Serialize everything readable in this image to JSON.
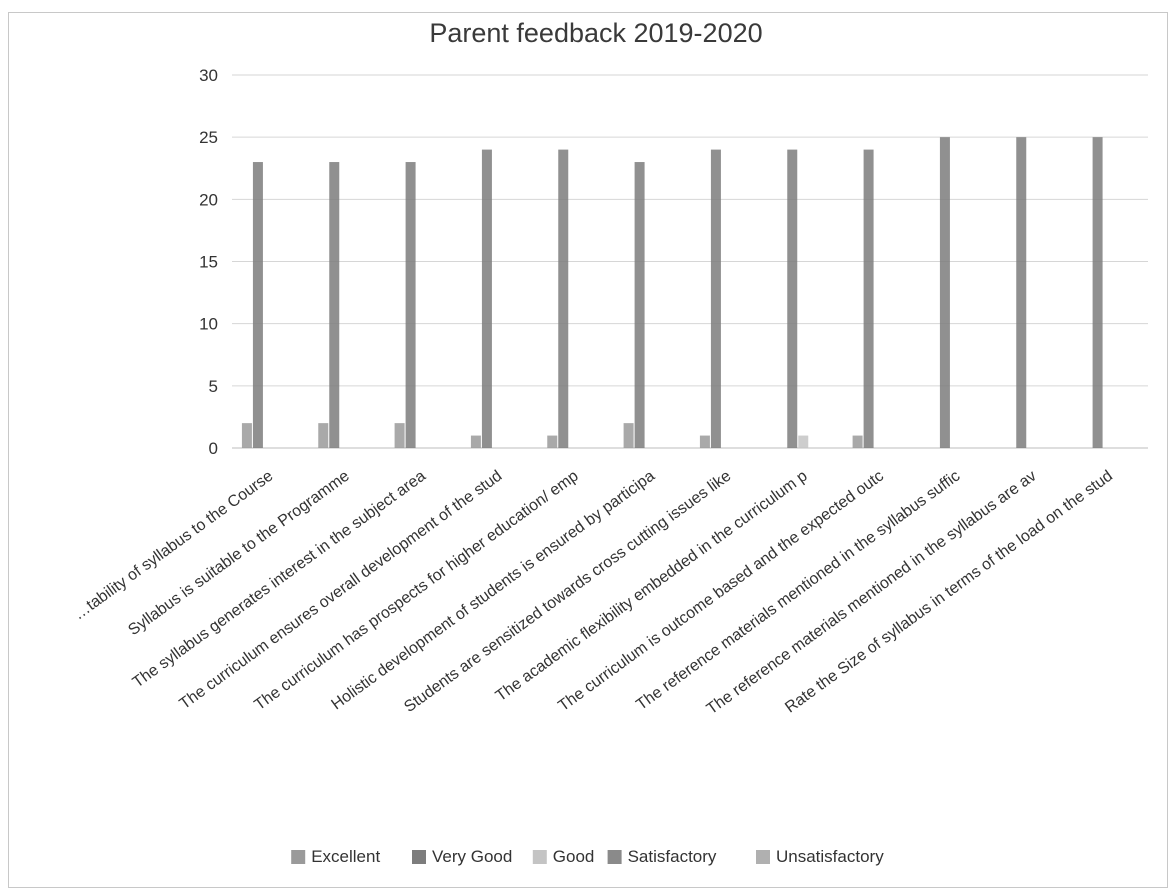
{
  "chart_data": {
    "type": "bar",
    "title": "Parent feedback 2019-2020",
    "xlabel": "",
    "ylabel": "",
    "ylim": [
      0,
      30
    ],
    "yticks": [
      0,
      5,
      10,
      15,
      20,
      25,
      30
    ],
    "grid": true,
    "legend_position": "bottom",
    "categories": [
      "…tability of syllabus to the Course",
      "Syllabus is suitable to the Programme",
      "The syllabus generates interest in the subject area",
      "The curriculum ensures overall development of the stud",
      "The curriculum has prospects for higher education/ emp",
      "Holistic development of students  is ensured by participa",
      "Students are sensitized towards cross cutting issues like",
      "The  academic  flexibility embedded  in the curriculum  p",
      "The  curriculum is outcome based and the expected outc",
      "The reference materials mentioned in the syllabus suffic",
      "The reference materials mentioned in the syllabus are av",
      "Rate the Size of syllabus in terms of the load on the stud"
    ],
    "series": [
      {
        "name": "Excellent",
        "color": "#9a9a9a",
        "values": [
          2,
          2,
          2,
          1,
          1,
          2,
          1,
          0,
          1,
          0,
          0,
          0
        ]
      },
      {
        "name": "Very Good",
        "color": "#7d7d7d",
        "values": [
          23,
          23,
          23,
          24,
          24,
          23,
          24,
          24,
          24,
          25,
          25,
          25
        ]
      },
      {
        "name": "Good",
        "color": "#c4c4c4",
        "values": [
          0,
          0,
          0,
          0,
          0,
          0,
          0,
          1,
          0,
          0,
          0,
          0
        ]
      },
      {
        "name": "Satisfactory",
        "color": "#8a8a8a",
        "values": [
          0,
          0,
          0,
          0,
          0,
          0,
          0,
          0,
          0,
          0,
          0,
          0
        ]
      },
      {
        "name": "Unsatisfactory",
        "color": "#b0b0b0",
        "values": [
          0,
          0,
          0,
          0,
          0,
          0,
          0,
          0,
          0,
          0,
          0,
          0
        ]
      }
    ]
  }
}
